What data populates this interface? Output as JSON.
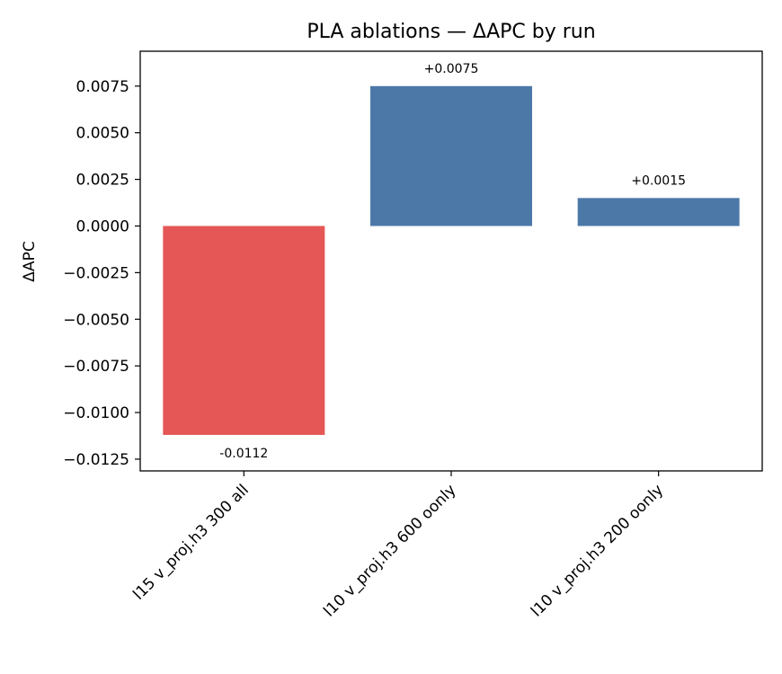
{
  "chart_data": {
    "type": "bar",
    "title": "PLA ablations — ΔAPC by run",
    "xlabel": "",
    "ylabel": "ΔAPC",
    "categories": [
      "l15 v_proj.h3 300 all",
      "l10 v_proj.h3 600 oonly",
      "l10 v_proj.h3 200 oonly"
    ],
    "values": [
      -0.0112,
      0.0075,
      0.0015
    ],
    "data_labels": [
      "-0.0112",
      "+0.0075",
      "+0.0015"
    ],
    "bar_colors": [
      "#e45756",
      "#4c78a8",
      "#4c78a8"
    ],
    "ylim": [
      -0.01313,
      0.00937
    ],
    "yticks": [
      0.0075,
      0.005,
      0.0025,
      0.0,
      -0.0025,
      -0.005,
      -0.0075,
      -0.01,
      -0.0125
    ],
    "ytick_labels": [
      "0.0075",
      "0.0050",
      "0.0025",
      "0.0000",
      "−0.0025",
      "−0.0050",
      "−0.0075",
      "−0.0100",
      "−0.0125"
    ],
    "grid": false,
    "legend": "none"
  }
}
